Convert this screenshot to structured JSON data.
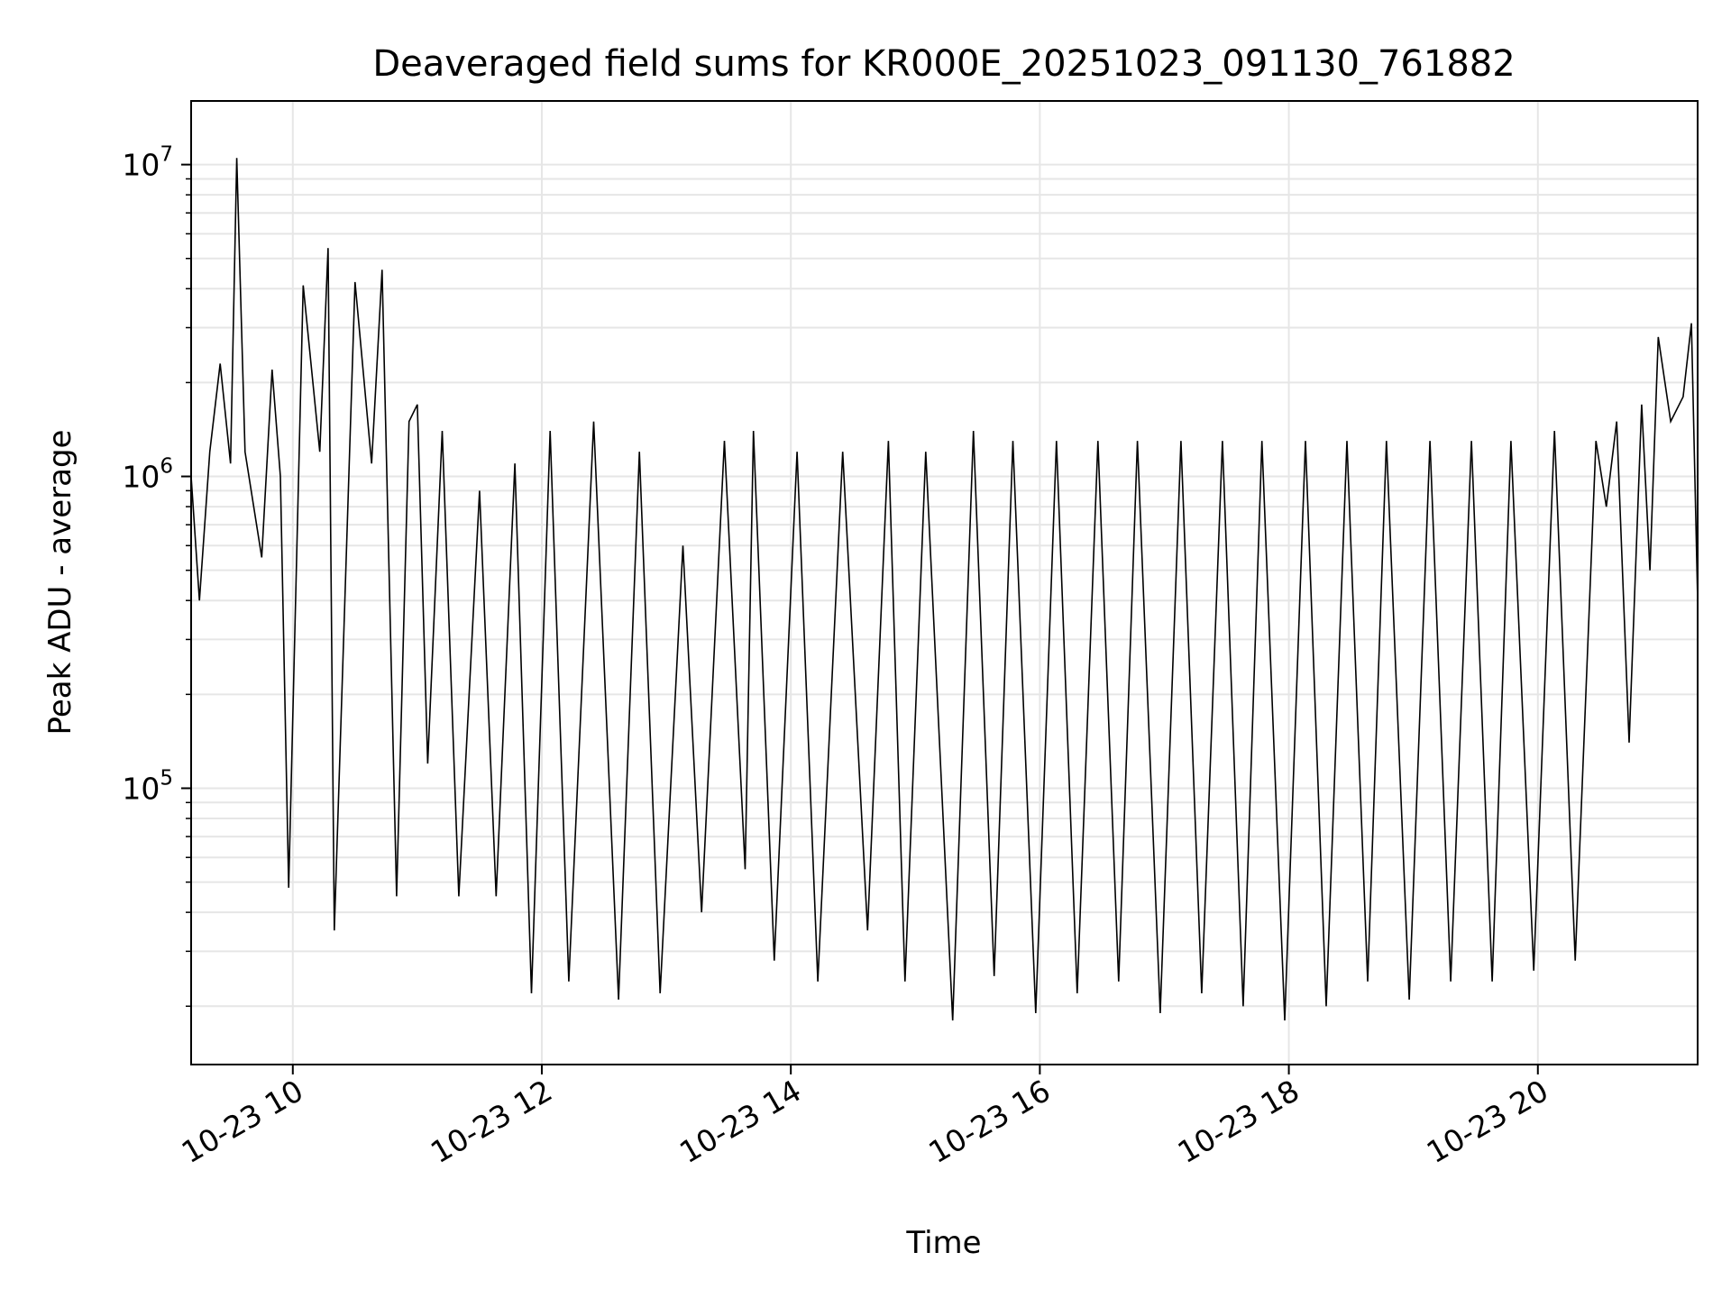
{
  "chart_data": {
    "type": "line",
    "title": "Deaveraged field sums for KR000E_20251023_091130_761882",
    "xlabel": "Time",
    "ylabel": "Peak ADU - average",
    "yscale": "log",
    "ylim": [
      13000,
      16000000
    ],
    "xlim": [
      "2025-10-23 09:11",
      "2025-10-23 21:17"
    ],
    "grid": true,
    "line_color": "#000000",
    "x_ticks": [
      {
        "value": "2025-10-23 10:00",
        "label": "10-23 10"
      },
      {
        "value": "2025-10-23 12:00",
        "label": "10-23 12"
      },
      {
        "value": "2025-10-23 14:00",
        "label": "10-23 14"
      },
      {
        "value": "2025-10-23 16:00",
        "label": "10-23 16"
      },
      {
        "value": "2025-10-23 18:00",
        "label": "10-23 18"
      },
      {
        "value": "2025-10-23 20:00",
        "label": "10-23 20"
      }
    ],
    "y_ticks": [
      {
        "value": 100000,
        "base": "10",
        "exp": "5"
      },
      {
        "value": 1000000,
        "base": "10",
        "exp": "6"
      },
      {
        "value": 10000000,
        "base": "10",
        "exp": "7"
      }
    ],
    "series": [
      {
        "x": [
          "2025-10-23 09:11",
          "2025-10-23 09:15",
          "2025-10-23 09:20",
          "2025-10-23 09:25",
          "2025-10-23 09:30",
          "2025-10-23 09:33",
          "2025-10-23 09:37",
          "2025-10-23 09:45",
          "2025-10-23 09:50",
          "2025-10-23 09:54",
          "2025-10-23 09:58",
          "2025-10-23 10:05",
          "2025-10-23 10:13",
          "2025-10-23 10:17",
          "2025-10-23 10:20",
          "2025-10-23 10:30",
          "2025-10-23 10:38",
          "2025-10-23 10:43",
          "2025-10-23 10:50",
          "2025-10-23 10:56",
          "2025-10-23 11:00",
          "2025-10-23 11:05",
          "2025-10-23 11:12",
          "2025-10-23 11:20",
          "2025-10-23 11:30",
          "2025-10-23 11:38",
          "2025-10-23 11:47",
          "2025-10-23 11:55",
          "2025-10-23 12:04",
          "2025-10-23 12:13",
          "2025-10-23 12:25",
          "2025-10-23 12:37",
          "2025-10-23 12:47",
          "2025-10-23 12:57",
          "2025-10-23 13:08",
          "2025-10-23 13:17",
          "2025-10-23 13:28",
          "2025-10-23 13:38",
          "2025-10-23 13:42",
          "2025-10-23 13:52",
          "2025-10-23 14:03",
          "2025-10-23 14:13",
          "2025-10-23 14:25",
          "2025-10-23 14:37",
          "2025-10-23 14:47",
          "2025-10-23 14:55",
          "2025-10-23 15:05",
          "2025-10-23 15:18",
          "2025-10-23 15:28",
          "2025-10-23 15:38",
          "2025-10-23 15:47",
          "2025-10-23 15:58",
          "2025-10-23 16:08",
          "2025-10-23 16:18",
          "2025-10-23 16:28",
          "2025-10-23 16:38",
          "2025-10-23 16:47",
          "2025-10-23 16:58",
          "2025-10-23 17:08",
          "2025-10-23 17:18",
          "2025-10-23 17:28",
          "2025-10-23 17:38",
          "2025-10-23 17:47",
          "2025-10-23 17:58",
          "2025-10-23 18:08",
          "2025-10-23 18:18",
          "2025-10-23 18:28",
          "2025-10-23 18:38",
          "2025-10-23 18:47",
          "2025-10-23 18:58",
          "2025-10-23 19:08",
          "2025-10-23 19:18",
          "2025-10-23 19:28",
          "2025-10-23 19:38",
          "2025-10-23 19:47",
          "2025-10-23 19:58",
          "2025-10-23 20:08",
          "2025-10-23 20:18",
          "2025-10-23 20:28",
          "2025-10-23 20:33",
          "2025-10-23 20:38",
          "2025-10-23 20:44",
          "2025-10-23 20:50",
          "2025-10-23 20:54",
          "2025-10-23 20:58",
          "2025-10-23 21:04",
          "2025-10-23 21:10",
          "2025-10-23 21:14",
          "2025-10-23 21:17"
        ],
        "y": [
          1000000,
          400000,
          1200000,
          2300000,
          1100000,
          10500000,
          1200000,
          550000,
          2200000,
          1000000,
          48000,
          4100000,
          1200000,
          5400000,
          35000,
          4200000,
          1100000,
          4600000,
          45000,
          1500000,
          1700000,
          120000,
          1400000,
          45000,
          900000,
          45000,
          1100000,
          22000,
          1400000,
          24000,
          1500000,
          21000,
          1200000,
          22000,
          600000,
          40000,
          1300000,
          55000,
          1400000,
          28000,
          1200000,
          24000,
          1200000,
          35000,
          1300000,
          24000,
          1200000,
          18000,
          1400000,
          25000,
          1300000,
          19000,
          1300000,
          22000,
          1300000,
          24000,
          1300000,
          19000,
          1300000,
          22000,
          1300000,
          20000,
          1300000,
          18000,
          1300000,
          20000,
          1300000,
          24000,
          1300000,
          21000,
          1300000,
          24000,
          1300000,
          24000,
          1300000,
          26000,
          1400000,
          28000,
          1300000,
          800000,
          1500000,
          140000,
          1700000,
          500000,
          2800000,
          1500000,
          1800000,
          3100000,
          400000
        ]
      }
    ]
  }
}
